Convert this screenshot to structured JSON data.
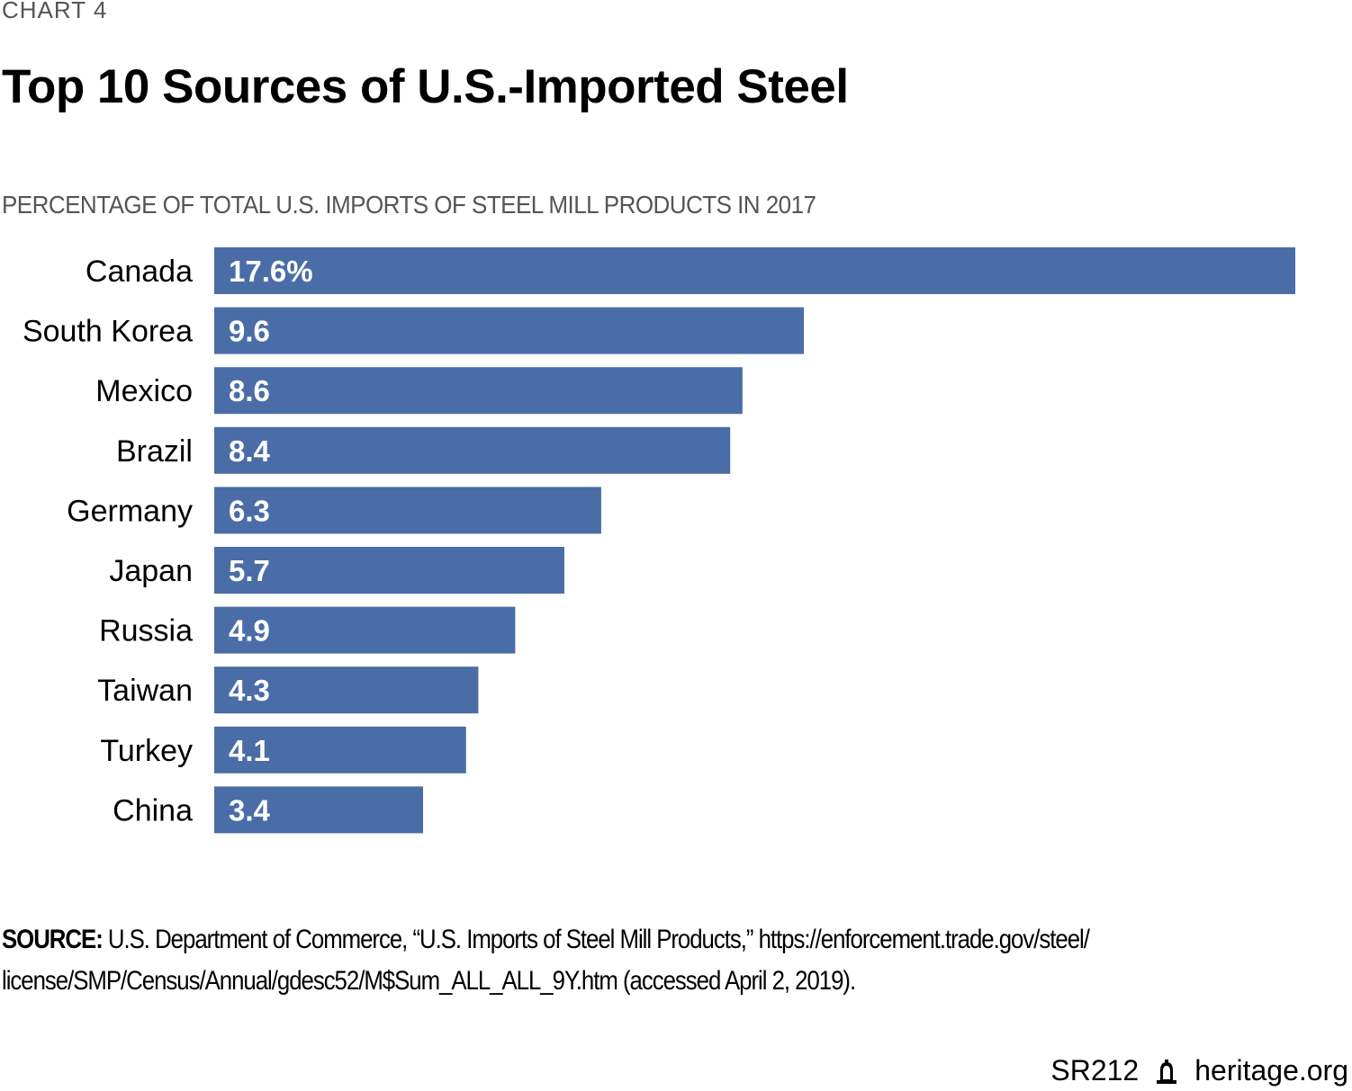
{
  "header": {
    "chart_number": "CHART 4",
    "title": "Top 10 Sources of U.S.-Imported Steel",
    "subtitle": "PERCENTAGE OF TOTAL U.S. IMPORTS OF STEEL MILL PRODUCTS IN 2017"
  },
  "chart_data": {
    "type": "bar",
    "orientation": "horizontal",
    "title": "Top 10 Sources of U.S.-Imported Steel",
    "subtitle": "PERCENTAGE OF TOTAL U.S. IMPORTS OF STEEL MILL PRODUCTS IN 2017",
    "xlabel": "",
    "ylabel": "",
    "categories": [
      "Canada",
      "South Korea",
      "Mexico",
      "Brazil",
      "Germany",
      "Japan",
      "Russia",
      "Taiwan",
      "Turkey",
      "China"
    ],
    "values": [
      17.6,
      9.6,
      8.6,
      8.4,
      6.3,
      5.7,
      4.9,
      4.3,
      4.1,
      3.4
    ],
    "data_labels": [
      "17.6%",
      "9.6",
      "8.6",
      "8.4",
      "6.3",
      "5.7",
      "4.9",
      "4.3",
      "4.1",
      "3.4"
    ],
    "unit": "%",
    "xlim": [
      0,
      17.6
    ],
    "grid": false,
    "legend": "none",
    "bar_color": "#4a6da7"
  },
  "footer": {
    "source_label": "SOURCE:",
    "source_line1": " U.S. Department of Commerce, “U.S. Imports of Steel Mill Products,” https://enforcement.trade.gov/steel/",
    "source_line2": "license/SMP/Census/Annual/gdesc52/M$Sum_ALL_ALL_9Y.htm (accessed April 2, 2019).",
    "report_id": "SR212",
    "logo_icon": "liberty-bell-icon",
    "site": "heritage.org"
  }
}
